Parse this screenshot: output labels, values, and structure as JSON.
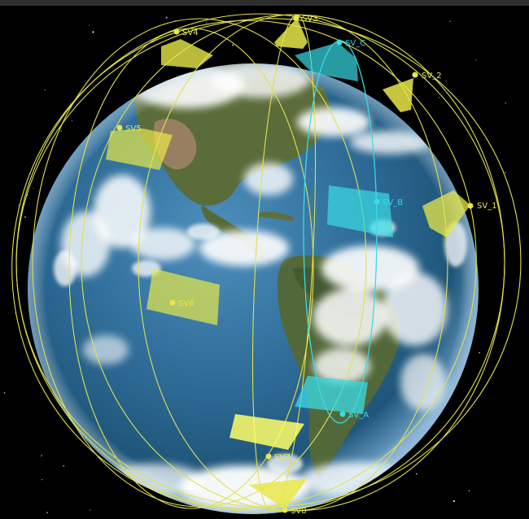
{
  "window": {
    "frame_color": "#2e2e2e",
    "background_color": "#000000"
  },
  "scene": {
    "globe_colors": {
      "ocean": "#2f6f99",
      "ocean_light": "#6fa0c8",
      "land": "#5d6f3d",
      "cloud": "#ffffff",
      "desert": "#a8856a"
    },
    "footprint_colors": {
      "yellow": "#e8e84a",
      "cyan": "#39dbe6"
    },
    "orbit_color": "#e0e050"
  },
  "satellites": [
    {
      "id": "sv1",
      "label": "SV_1",
      "group": "yellow"
    },
    {
      "id": "sv2",
      "label": "SV_2",
      "group": "yellow"
    },
    {
      "id": "sv3",
      "label": "SV3",
      "group": "yellow"
    },
    {
      "id": "sv4",
      "label": "SV4",
      "group": "yellow"
    },
    {
      "id": "sv5",
      "label": "SV5",
      "group": "yellow"
    },
    {
      "id": "sv6",
      "label": "SV6",
      "group": "yellow"
    },
    {
      "id": "sv7",
      "label": "SV7",
      "group": "yellow"
    },
    {
      "id": "sv8",
      "label": "SV8",
      "group": "yellow"
    },
    {
      "id": "sv_a",
      "label": "SV_A",
      "group": "cyan"
    },
    {
      "id": "sv_b",
      "label": "SV_B",
      "group": "cyan"
    },
    {
      "id": "sv_c",
      "label": "SV_C",
      "group": "cyan"
    }
  ]
}
